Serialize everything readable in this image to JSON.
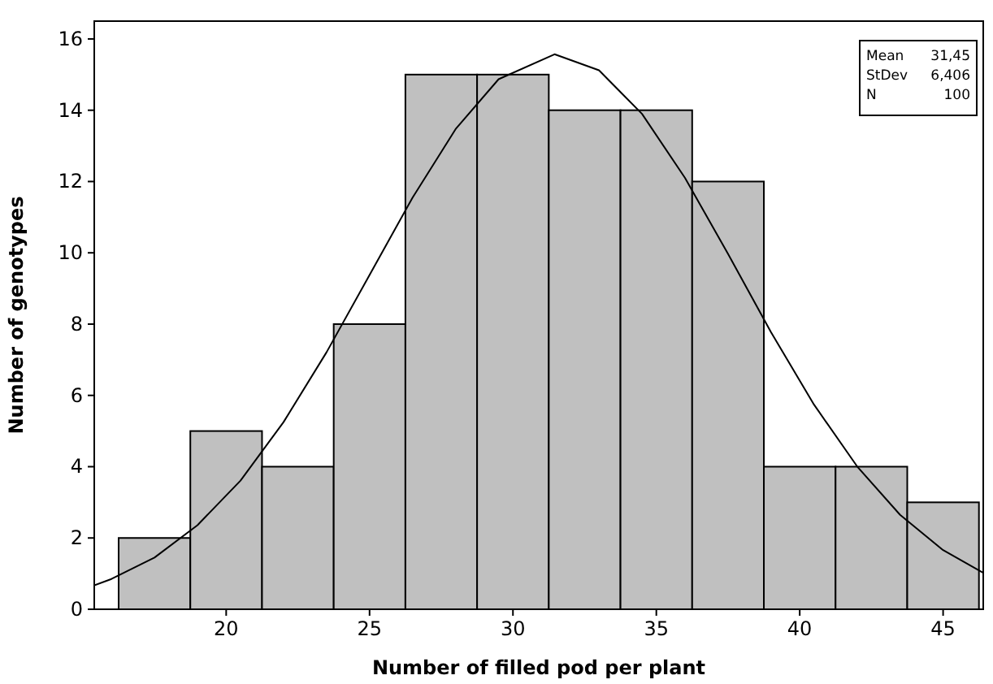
{
  "chart_data": {
    "type": "histogram",
    "xlabel": "Number of filled pod per plant",
    "ylabel": "Number of genotypes",
    "xlim": [
      15.4,
      46.4
    ],
    "xticks": [
      20,
      25,
      30,
      35,
      40,
      45
    ],
    "ylim": [
      0,
      16.5
    ],
    "yticks": [
      0,
      2,
      4,
      6,
      8,
      10,
      12,
      14,
      16
    ],
    "grid": false,
    "annotations": [
      "Mean 31,45",
      "StDev 6,406",
      "N 100"
    ],
    "series": [
      {
        "color": "#c0c0c0",
        "bins": [
          16.25,
          18.75,
          21.25,
          23.75,
          26.25,
          28.75,
          31.25,
          33.75,
          36.25,
          38.75,
          41.25,
          43.75,
          46.25
        ],
        "values": [
          2,
          5,
          4,
          8,
          15,
          15,
          14,
          14,
          12,
          4,
          4,
          3
        ]
      },
      {
        "type": "line",
        "color": "#000000",
        "x": [
          15.4,
          16,
          17.5,
          19,
          20.5,
          22,
          23.5,
          25,
          26.5,
          28,
          29.5,
          31.45,
          33,
          34.5,
          36,
          37.5,
          39,
          40.5,
          42,
          43.5,
          45,
          46.4
        ],
        "values": [
          0.67,
          0.85,
          1.45,
          2.36,
          3.61,
          5.25,
          7.21,
          9.38,
          11.55,
          13.47,
          14.87,
          15.57,
          15.12,
          13.9,
          12.1,
          9.97,
          7.77,
          5.74,
          4.01,
          2.65,
          1.66,
          1.02
        ]
      }
    ]
  }
}
